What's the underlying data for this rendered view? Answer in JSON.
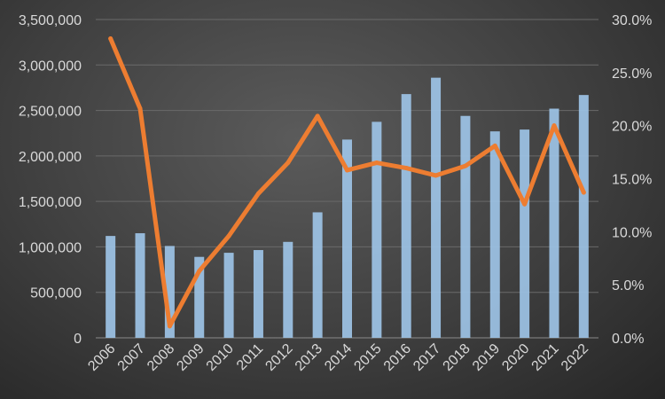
{
  "chart_data": {
    "type": "bar",
    "combo": "bar + line on secondary axis",
    "title": "",
    "xlabel": "",
    "ylabel": "",
    "y2label": "",
    "grid": true,
    "legend": "none",
    "categories": [
      "2006",
      "2007",
      "2008",
      "2009",
      "2010",
      "2011",
      "2012",
      "2013",
      "2014",
      "2015",
      "2016",
      "2017",
      "2018",
      "2019",
      "2020",
      "2021",
      "2022"
    ],
    "ylim": [
      0,
      3500000
    ],
    "y_ticks": [
      0,
      500000,
      1000000,
      1500000,
      2000000,
      2500000,
      3000000,
      3500000
    ],
    "y_tick_labels": [
      "0",
      "500,000",
      "1,000,000",
      "1,500,000",
      "2,000,000",
      "2,500,000",
      "3,000,000",
      "3,500,000"
    ],
    "y2lim": [
      0,
      0.3
    ],
    "y2_ticks": [
      0,
      0.05,
      0.1,
      0.15,
      0.2,
      0.25,
      0.3
    ],
    "y2_tick_labels": [
      "0.0%",
      "5.0%",
      "10.0%",
      "15.0%",
      "20.0%",
      "25.0%",
      "30.0%"
    ],
    "series": [
      {
        "type": "bar",
        "axis": "left",
        "color": "#9dc3e6",
        "values": [
          1120000,
          1150000,
          1010000,
          890000,
          935000,
          965000,
          1055000,
          1380000,
          2180000,
          2375000,
          2680000,
          2860000,
          2440000,
          2270000,
          2290000,
          2520000,
          2670000
        ]
      },
      {
        "type": "line",
        "axis": "right",
        "color": "#ed7d31",
        "values": [
          0.282,
          0.216,
          0.011,
          0.063,
          0.096,
          0.136,
          0.165,
          0.209,
          0.158,
          0.165,
          0.16,
          0.153,
          0.162,
          0.181,
          0.126,
          0.2,
          0.137
        ]
      }
    ]
  }
}
